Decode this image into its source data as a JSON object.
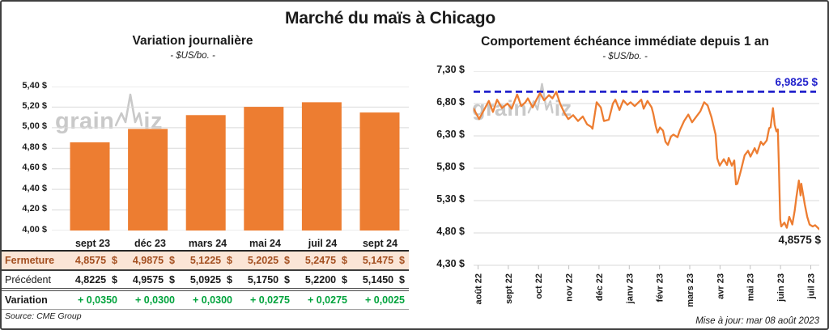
{
  "page": {
    "title": "Marché du maïs à Chicago"
  },
  "notes": {
    "source": "Source: CME Group",
    "update": "Mise à jour: mar 08 août 2023"
  },
  "watermark": {
    "text1": "grain",
    "text2": "iz"
  },
  "colors": {
    "accent_orange": "#ED7D31",
    "reference_blue": "#2222CC",
    "variation_green": "#00A33C",
    "fermeture_text": "#A34F20",
    "fermeture_bg": "#FBE5D6",
    "gridline": "#D9D9D9"
  },
  "chart_data": [
    {
      "type": "bar",
      "title": "Variation journalière",
      "subtitle": "- $US/bo. -",
      "categories": [
        "sept 23",
        "déc 23",
        "mars 24",
        "mai 24",
        "juil 24",
        "sept 24"
      ],
      "values": [
        4.8575,
        4.9875,
        5.1225,
        5.2025,
        5.2475,
        5.1475
      ],
      "ylabel": "$US/bo.",
      "ylim": [
        4.0,
        5.4
      ],
      "ytick_step": 0.2,
      "ytick_labels": [
        "5,40 $",
        "5,20 $",
        "5,00 $",
        "4,80 $",
        "4,60 $",
        "4,40 $",
        "4,20 $",
        "4,00 $"
      ],
      "grid": true,
      "bar_color": "#ED7D31"
    },
    {
      "type": "line",
      "title": "Comportement échéance immédiate depuis 1 an",
      "subtitle": "- $US/bo. -",
      "ylabel": "$US/bo.",
      "ylim": [
        4.3,
        7.3
      ],
      "ytick_step": 0.5,
      "ytick_labels": [
        "7,30 $",
        "6,80 $",
        "6,30 $",
        "5,80 $",
        "5,30 $",
        "4,80 $",
        "4,30 $"
      ],
      "x_labels": [
        "août 22",
        "sept 22",
        "oct 22",
        "nov 22",
        "déc 22",
        "janv 23",
        "févr 23",
        "mars 23",
        "avr 23",
        "mai 23",
        "juin 23",
        "juil 23"
      ],
      "grid": true,
      "line_color": "#ED7D31",
      "reference_line": {
        "value": 6.9825,
        "label": "6,9825 $",
        "color": "#2222CC",
        "style": "dashed"
      },
      "last_value": 4.8575,
      "last_label": "4,8575 $",
      "points_note": "pairs [pos, price] where pos is 0-1 fraction of x-axis (août 2022 à août 2023)",
      "points": [
        [
          0.0,
          6.72
        ],
        [
          0.01,
          6.62
        ],
        [
          0.016,
          6.56
        ],
        [
          0.03,
          6.7
        ],
        [
          0.044,
          6.84
        ],
        [
          0.056,
          6.67
        ],
        [
          0.068,
          6.86
        ],
        [
          0.082,
          6.73
        ],
        [
          0.098,
          6.8
        ],
        [
          0.11,
          6.72
        ],
        [
          0.126,
          6.94
        ],
        [
          0.138,
          6.76
        ],
        [
          0.15,
          6.82
        ],
        [
          0.157,
          6.88
        ],
        [
          0.171,
          6.74
        ],
        [
          0.182,
          6.86
        ],
        [
          0.192,
          6.96
        ],
        [
          0.204,
          6.85
        ],
        [
          0.218,
          6.93
        ],
        [
          0.228,
          6.88
        ],
        [
          0.239,
          6.98
        ],
        [
          0.25,
          6.8
        ],
        [
          0.262,
          6.66
        ],
        [
          0.274,
          6.56
        ],
        [
          0.288,
          6.62
        ],
        [
          0.302,
          6.53
        ],
        [
          0.316,
          6.6
        ],
        [
          0.328,
          6.48
        ],
        [
          0.34,
          6.44
        ],
        [
          0.344,
          6.41
        ],
        [
          0.356,
          6.82
        ],
        [
          0.368,
          6.74
        ],
        [
          0.377,
          6.53
        ],
        [
          0.391,
          6.55
        ],
        [
          0.403,
          6.8
        ],
        [
          0.41,
          6.86
        ],
        [
          0.422,
          6.7
        ],
        [
          0.433,
          6.85
        ],
        [
          0.445,
          6.78
        ],
        [
          0.454,
          6.82
        ],
        [
          0.466,
          6.76
        ],
        [
          0.485,
          6.86
        ],
        [
          0.492,
          6.72
        ],
        [
          0.503,
          6.84
        ],
        [
          0.515,
          6.74
        ],
        [
          0.52,
          6.64
        ],
        [
          0.527,
          6.45
        ],
        [
          0.532,
          6.35
        ],
        [
          0.539,
          6.43
        ],
        [
          0.548,
          6.38
        ],
        [
          0.555,
          6.21
        ],
        [
          0.562,
          6.16
        ],
        [
          0.571,
          6.29
        ],
        [
          0.578,
          6.32
        ],
        [
          0.59,
          6.28
        ],
        [
          0.597,
          6.39
        ],
        [
          0.609,
          6.53
        ],
        [
          0.621,
          6.63
        ],
        [
          0.632,
          6.51
        ],
        [
          0.642,
          6.58
        ],
        [
          0.656,
          6.68
        ],
        [
          0.667,
          6.82
        ],
        [
          0.677,
          6.77
        ],
        [
          0.688,
          6.59
        ],
        [
          0.7,
          6.32
        ],
        [
          0.705,
          5.95
        ],
        [
          0.712,
          5.84
        ],
        [
          0.724,
          5.94
        ],
        [
          0.733,
          5.85
        ],
        [
          0.738,
          5.96
        ],
        [
          0.747,
          5.84
        ],
        [
          0.754,
          5.92
        ],
        [
          0.759,
          5.55
        ],
        [
          0.763,
          5.56
        ],
        [
          0.773,
          5.76
        ],
        [
          0.784,
          6.0
        ],
        [
          0.794,
          6.07
        ],
        [
          0.801,
          5.98
        ],
        [
          0.813,
          6.11
        ],
        [
          0.82,
          6.03
        ],
        [
          0.831,
          6.21
        ],
        [
          0.838,
          6.16
        ],
        [
          0.848,
          6.23
        ],
        [
          0.855,
          6.42
        ],
        [
          0.859,
          6.43
        ],
        [
          0.866,
          6.73
        ],
        [
          0.871,
          6.47
        ],
        [
          0.876,
          6.37
        ],
        [
          0.88,
          6.4
        ],
        [
          0.883,
          5.88
        ],
        [
          0.887,
          5.01
        ],
        [
          0.89,
          4.9
        ],
        [
          0.899,
          4.96
        ],
        [
          0.906,
          4.88
        ],
        [
          0.913,
          5.05
        ],
        [
          0.922,
          4.93
        ],
        [
          0.929,
          5.15
        ],
        [
          0.934,
          5.36
        ],
        [
          0.941,
          5.61
        ],
        [
          0.946,
          5.38
        ],
        [
          0.948,
          5.56
        ],
        [
          0.958,
          5.24
        ],
        [
          0.965,
          5.05
        ],
        [
          0.972,
          4.93
        ],
        [
          0.981,
          4.9
        ],
        [
          0.988,
          4.92
        ],
        [
          1.0,
          4.8575
        ]
      ]
    }
  ],
  "table": {
    "columns": [
      "sept 23",
      "déc 23",
      "mars 24",
      "mai 24",
      "juil 24",
      "sept 24"
    ],
    "rows": {
      "fermeture": {
        "label": "Fermeture",
        "values": [
          "4,8575  $",
          "4,9875  $",
          "5,1225  $",
          "5,2025  $",
          "5,2475  $",
          "5,1475  $"
        ]
      },
      "precedent": {
        "label": "Précédent",
        "values": [
          "4,8225  $",
          "4,9575  $",
          "5,0925  $",
          "5,1750  $",
          "5,2200  $",
          "5,1450  $"
        ]
      },
      "variation": {
        "label": "Variation",
        "values": [
          "+ 0,0350",
          "+ 0,0300",
          "+ 0,0300",
          "+ 0,0275",
          "+ 0,0275",
          "+ 0,0025"
        ]
      }
    }
  }
}
